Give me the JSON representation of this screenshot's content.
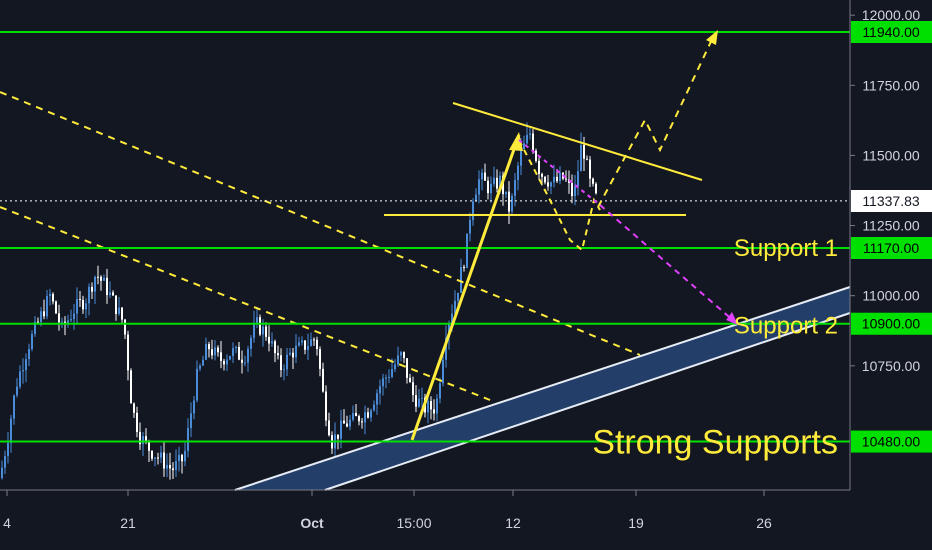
{
  "chart_data": {
    "type": "candlestick",
    "price_axis": {
      "ticks": [
        {
          "value": 12000,
          "label": "12000.00"
        },
        {
          "value": 11750,
          "label": "11750.00"
        },
        {
          "value": 11500,
          "label": "11500.00"
        },
        {
          "value": 11250,
          "label": "11250.00"
        },
        {
          "value": 11000,
          "label": "11000.00"
        },
        {
          "value": 10750,
          "label": "10750.00"
        }
      ],
      "ylim": [
        10300,
        12050
      ]
    },
    "time_axis": {
      "labels": [
        {
          "label": "4",
          "bold": false
        },
        {
          "label": "21",
          "bold": false
        },
        {
          "label": "Oct",
          "bold": true
        },
        {
          "label": "15:00",
          "bold": false
        },
        {
          "label": "12",
          "bold": false
        },
        {
          "label": "19",
          "bold": false
        },
        {
          "label": "26",
          "bold": false
        }
      ]
    },
    "current_price": {
      "value": 11337.83,
      "label": "11337.83"
    },
    "levels": [
      {
        "value": 11940,
        "label": "11940.00",
        "annotation": ""
      },
      {
        "value": 11170,
        "label": "11170.00",
        "annotation": "Support  1"
      },
      {
        "value": 10900,
        "label": "10900.00",
        "annotation": "Support 2"
      },
      {
        "value": 10480,
        "label": "10480.00",
        "annotation": "Strong Supports"
      }
    ],
    "colors": {
      "background": "#131722",
      "level_line": "#00e000",
      "badge": "#00e000",
      "annotation": "#ffeb3b",
      "channel_fill": "#233e68",
      "channel_edge": "#e6ecf5",
      "projection": "#e040fb",
      "candle_up": "#4a8cd8",
      "candle_down": "#ffffff"
    }
  }
}
